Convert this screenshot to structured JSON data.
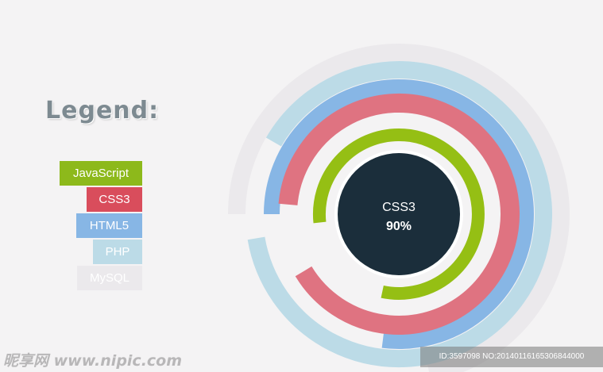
{
  "legend": {
    "title": "Legend:",
    "items": [
      {
        "label": "JavaScript",
        "color": "#8db91b"
      },
      {
        "label": "CSS3",
        "color": "#d94d5c"
      },
      {
        "label": "HTML5",
        "color": "#87b6e5"
      },
      {
        "label": "PHP",
        "color": "#bcdbe7"
      },
      {
        "label": "MySQL",
        "color": "#ebe9ec"
      }
    ]
  },
  "chart_data": {
    "type": "radial-bar",
    "series": [
      {
        "name": "MySQL",
        "value": 72,
        "color": "#ebe9ec"
      },
      {
        "name": "PHP",
        "value": 89,
        "color": "#bcdbe7"
      },
      {
        "name": "HTML5",
        "value": 77,
        "color": "#87b6e5"
      },
      {
        "name": "CSS3",
        "value": 90,
        "color": "#df7381"
      },
      {
        "name": "JavaScript",
        "value": 80,
        "color": "#95bf14"
      }
    ],
    "selected": {
      "name": "CSS3",
      "value_label": "90%"
    },
    "center_color": "#1b2e3b"
  },
  "watermark": {
    "logo": "昵享网 www.nipic.com",
    "id_text": "ID:3597098 NO:20140116165306844000"
  }
}
